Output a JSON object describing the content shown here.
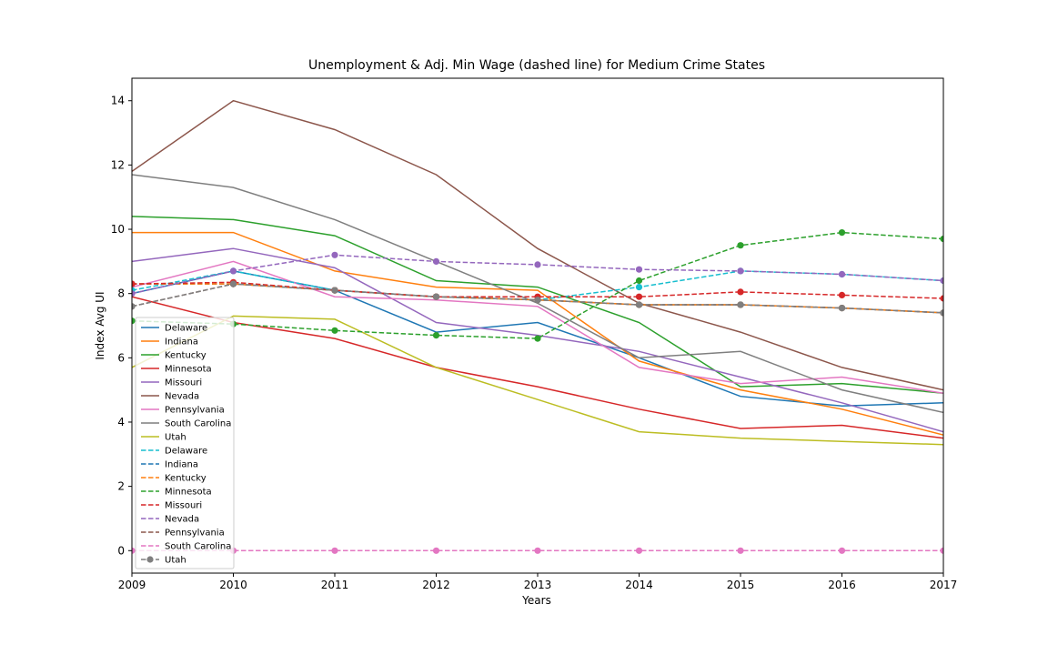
{
  "chart_data": {
    "type": "line",
    "title": "Unemployment & Adj. Min Wage (dashed line) for Medium Crime States",
    "xlabel": "Years",
    "ylabel": "Index Avg UI",
    "xlim": [
      2009,
      2017
    ],
    "ylim": [
      -0.7,
      14.7
    ],
    "x": [
      2009,
      2010,
      2011,
      2012,
      2013,
      2014,
      2015,
      2016,
      2017
    ],
    "yticks": [
      0,
      2,
      4,
      6,
      8,
      10,
      12,
      14
    ],
    "legend_position": "lower-left",
    "series": [
      {
        "name": "Delaware",
        "style": "solid",
        "marker": false,
        "color": "#1f77b4",
        "values": [
          8.0,
          8.7,
          8.1,
          6.8,
          7.1,
          6.0,
          4.8,
          4.5,
          4.6
        ]
      },
      {
        "name": "Indiana",
        "style": "solid",
        "marker": false,
        "color": "#ff7f0e",
        "values": [
          9.9,
          9.9,
          8.7,
          8.2,
          8.1,
          5.9,
          5.0,
          4.4,
          3.6
        ]
      },
      {
        "name": "Kentucky",
        "style": "solid",
        "marker": false,
        "color": "#2ca02c",
        "values": [
          10.4,
          10.3,
          9.8,
          8.4,
          8.2,
          7.1,
          5.1,
          5.2,
          4.9
        ]
      },
      {
        "name": "Minnesota",
        "style": "solid",
        "marker": false,
        "color": "#d62728",
        "values": [
          7.9,
          7.1,
          6.6,
          5.7,
          5.1,
          4.4,
          3.8,
          3.9,
          3.5
        ]
      },
      {
        "name": "Missouri",
        "style": "solid",
        "marker": false,
        "color": "#9467bd",
        "values": [
          9.0,
          9.4,
          8.8,
          7.1,
          6.7,
          6.2,
          5.4,
          4.6,
          3.7
        ]
      },
      {
        "name": "Nevada",
        "style": "solid",
        "marker": false,
        "color": "#8c564b",
        "values": [
          11.8,
          14.0,
          13.1,
          11.7,
          9.4,
          7.7,
          6.8,
          5.7,
          5.0
        ]
      },
      {
        "name": "Pennsylvania",
        "style": "solid",
        "marker": false,
        "color": "#e377c2",
        "values": [
          8.2,
          9.0,
          7.9,
          7.8,
          7.6,
          5.7,
          5.2,
          5.4,
          4.9
        ]
      },
      {
        "name": "South Carolina",
        "style": "solid",
        "marker": false,
        "color": "#7f7f7f",
        "values": [
          11.7,
          11.3,
          10.3,
          9.0,
          7.7,
          6.0,
          6.2,
          5.0,
          4.3
        ]
      },
      {
        "name": "Utah",
        "style": "solid",
        "marker": false,
        "color": "#bcbd22",
        "values": [
          5.7,
          7.3,
          7.2,
          5.7,
          4.7,
          3.7,
          3.5,
          3.4,
          3.3
        ]
      },
      {
        "name": "Delaware",
        "style": "dashed",
        "marker": true,
        "color": "#17becf",
        "values": [
          8.1,
          8.7,
          8.1,
          7.9,
          7.8,
          8.2,
          8.7,
          8.6,
          8.4
        ]
      },
      {
        "name": "Indiana",
        "style": "dashed",
        "marker": true,
        "color": "#1f77b4",
        "values": [
          8.3,
          8.3,
          8.1,
          7.9,
          7.8,
          7.65,
          7.65,
          7.55,
          7.4
        ]
      },
      {
        "name": "Kentucky",
        "style": "dashed",
        "marker": true,
        "color": "#ff7f0e",
        "values": [
          8.3,
          8.3,
          8.1,
          7.9,
          7.8,
          7.65,
          7.65,
          7.55,
          7.4
        ]
      },
      {
        "name": "Minnesota",
        "style": "dashed",
        "marker": true,
        "color": "#2ca02c",
        "values": [
          7.15,
          7.05,
          6.85,
          6.7,
          6.6,
          8.4,
          9.5,
          9.9,
          9.7
        ]
      },
      {
        "name": "Missouri",
        "style": "dashed",
        "marker": true,
        "color": "#d62728",
        "values": [
          8.3,
          8.35,
          8.1,
          7.9,
          7.9,
          7.9,
          8.05,
          7.95,
          7.85
        ]
      },
      {
        "name": "Nevada",
        "style": "dashed",
        "marker": true,
        "color": "#9467bd",
        "values": [
          8.0,
          8.7,
          9.2,
          9.0,
          8.9,
          8.75,
          8.7,
          8.6,
          8.4
        ]
      },
      {
        "name": "Pennsylvania",
        "style": "dashed",
        "marker": true,
        "color": "#8c564b",
        "values": [
          7.6,
          8.3,
          8.1,
          7.9,
          7.8,
          7.65,
          7.65,
          7.55,
          7.4
        ]
      },
      {
        "name": "South Carolina",
        "style": "dashed",
        "marker": true,
        "color": "#e377c2",
        "values": [
          0,
          0,
          0,
          0,
          0,
          0,
          0,
          0,
          0
        ]
      },
      {
        "name": "Utah",
        "style": "dashed",
        "marker": true,
        "color": "#7f7f7f",
        "values": [
          7.6,
          8.3,
          8.1,
          7.9,
          7.8,
          7.65,
          7.65,
          7.55,
          7.4
        ]
      }
    ]
  }
}
